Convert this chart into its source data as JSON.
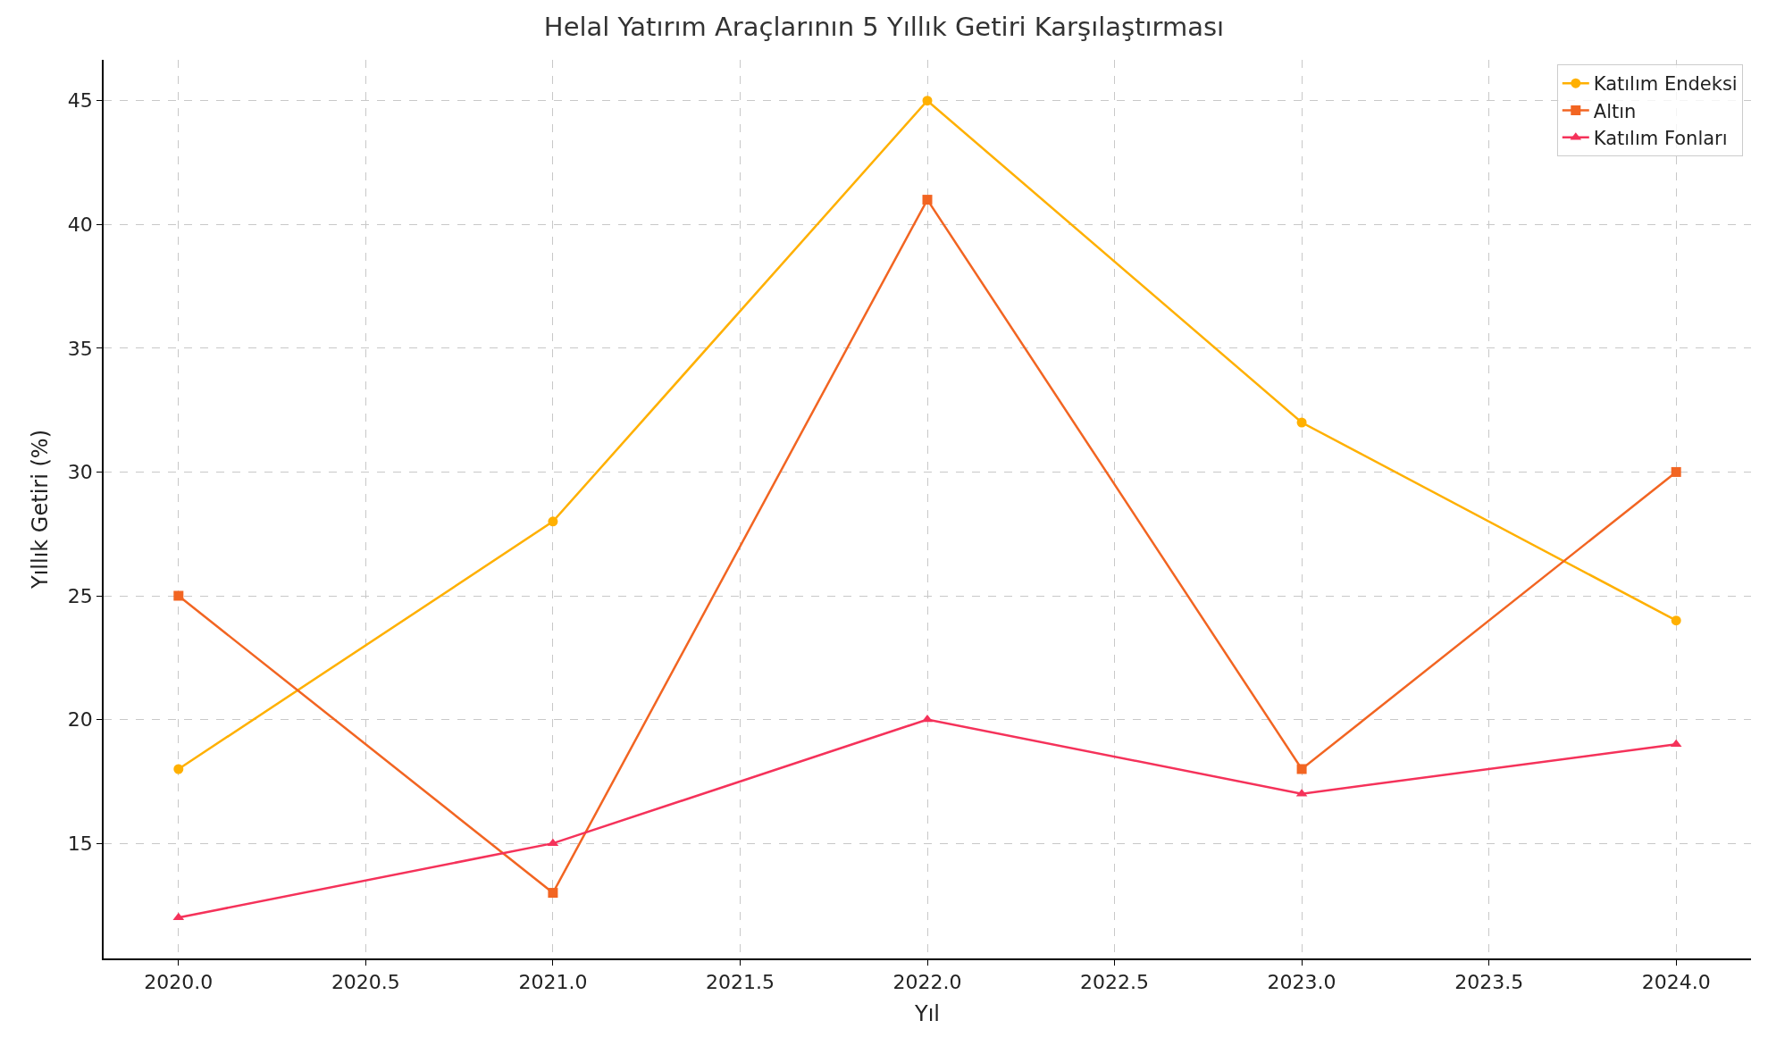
{
  "chart_data": {
    "type": "line",
    "title": "Helal Yatırım Araçlarının 5 Yıllık Getiri Karşılaştırması",
    "xlabel": "Yıl",
    "ylabel": "Yıllık Getiri (%)",
    "x": [
      2020,
      2021,
      2022,
      2023,
      2024
    ],
    "series": [
      {
        "name": "Katılım Endeksi",
        "color": "#ffb000",
        "marker": "circle",
        "values": [
          18,
          28,
          45,
          32,
          24
        ]
      },
      {
        "name": "Altın",
        "color": "#f26522",
        "marker": "square",
        "values": [
          25,
          13,
          41,
          18,
          30
        ]
      },
      {
        "name": "Katılım Fonları",
        "color": "#f5325a",
        "marker": "triangle",
        "values": [
          12,
          15,
          20,
          17,
          19
        ]
      }
    ],
    "xlim": [
      2019.8,
      2024.2
    ],
    "xticks": [
      {
        "value": 2020,
        "label": "2020.0"
      },
      {
        "value": 2020.5,
        "label": "2020.5"
      },
      {
        "value": 2021,
        "label": "2021.0"
      },
      {
        "value": 2021.5,
        "label": "2021.5"
      },
      {
        "value": 2022,
        "label": "2022.0"
      },
      {
        "value": 2022.5,
        "label": "2022.5"
      },
      {
        "value": 2023,
        "label": "2023.0"
      },
      {
        "value": 2023.5,
        "label": "2023.5"
      },
      {
        "value": 2024,
        "label": "2024.0"
      }
    ],
    "ylim": [
      10.35,
      46.65
    ],
    "yticks": [
      15,
      20,
      25,
      30,
      35,
      40,
      45
    ],
    "grid": true,
    "legend": "top right",
    "line_style": "solid"
  }
}
